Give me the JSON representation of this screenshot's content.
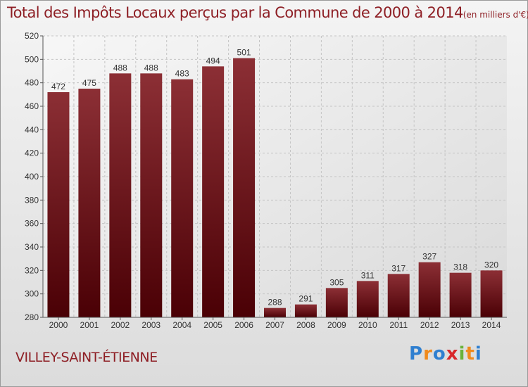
{
  "title": {
    "main": "Total des Impôts Locaux perçus par la Commune de 2000 à 2014",
    "unit": "(en milliers d'€)"
  },
  "commune": "VILLEY-SAINT-ÉTIENNE",
  "logo": {
    "letters": [
      "P",
      "r",
      "o",
      "x",
      "i",
      "t",
      "i"
    ],
    "colors": [
      "#2f7fd0",
      "#f08a1c",
      "#2f7fd0",
      "#d8262a",
      "#6ab23a",
      "#f08a1c",
      "#2f7fd0"
    ]
  },
  "chart_data": {
    "type": "bar",
    "categories": [
      "2000",
      "2001",
      "2002",
      "2003",
      "2004",
      "2005",
      "2006",
      "2007",
      "2008",
      "2009",
      "2010",
      "2011",
      "2012",
      "2013",
      "2014"
    ],
    "values": [
      472,
      475,
      488,
      488,
      483,
      494,
      501,
      288,
      291,
      305,
      311,
      317,
      327,
      318,
      320
    ],
    "ylim": [
      280,
      520
    ],
    "yticks": [
      "280",
      "300",
      "320",
      "340",
      "360",
      "380",
      "400",
      "420",
      "440",
      "460",
      "480",
      "500",
      "520"
    ],
    "grid": true,
    "bar_color": "#7a1a20"
  }
}
